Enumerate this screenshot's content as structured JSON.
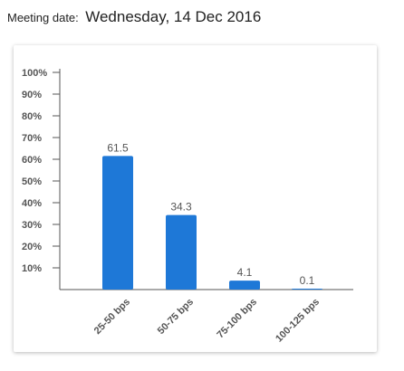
{
  "header": {
    "meeting_label": "Meeting date:",
    "meeting_value": "Wednesday, 14 Dec 2016"
  },
  "chart_data": {
    "type": "bar",
    "categories": [
      "25-50 bps",
      "50-75 bps",
      "75-100 bps",
      "100-125 bps"
    ],
    "values": [
      61.5,
      34.3,
      4.1,
      0.1
    ],
    "value_labels": [
      "61.5",
      "34.3",
      "4.1",
      "0.1"
    ],
    "ylim": [
      0,
      100
    ],
    "yticks": [
      "10%",
      "20%",
      "30%",
      "40%",
      "50%",
      "60%",
      "70%",
      "80%",
      "90%",
      "100%"
    ],
    "ytick_values": [
      10,
      20,
      30,
      40,
      50,
      60,
      70,
      80,
      90,
      100
    ],
    "grid": false,
    "bar_color": "#1e78d7"
  }
}
